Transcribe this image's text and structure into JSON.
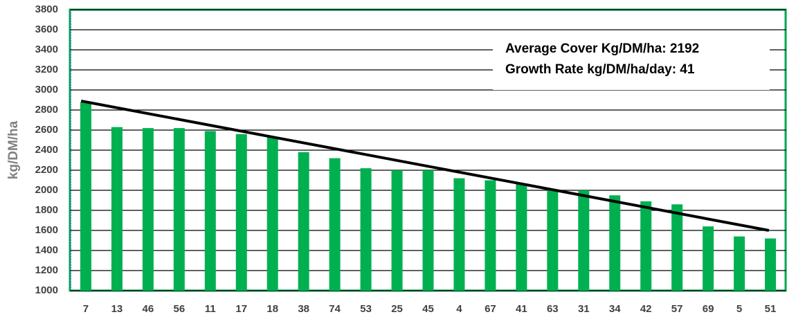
{
  "chart_data": {
    "type": "bar",
    "y_label": "kg/DM/ha",
    "annotations": [
      "Average Cover  Kg/DM/ha: 2192",
      "Growth Rate kg/DM/ha/day: 41"
    ],
    "categories": [
      "7",
      "13",
      "46",
      "56",
      "11",
      "17",
      "18",
      "38",
      "74",
      "53",
      "25",
      "45",
      "4",
      "67",
      "41",
      "63",
      "31",
      "34",
      "42",
      "57",
      "69",
      "5",
      "51"
    ],
    "values": [
      2880,
      2630,
      2620,
      2620,
      2590,
      2560,
      2530,
      2380,
      2320,
      2220,
      2200,
      2200,
      2120,
      2100,
      2070,
      2010,
      2000,
      1950,
      1890,
      1860,
      1640,
      1540,
      1520
    ],
    "color": "#00b050",
    "trend_line": {
      "start": 2890,
      "end": 1600,
      "color": "#000000"
    },
    "ylim": [
      1000,
      3800
    ],
    "yticks": [
      1000,
      1200,
      1400,
      1600,
      1800,
      2000,
      2200,
      2400,
      2600,
      2800,
      3000,
      3200,
      3400,
      3600,
      3800
    ],
    "grid": true
  }
}
